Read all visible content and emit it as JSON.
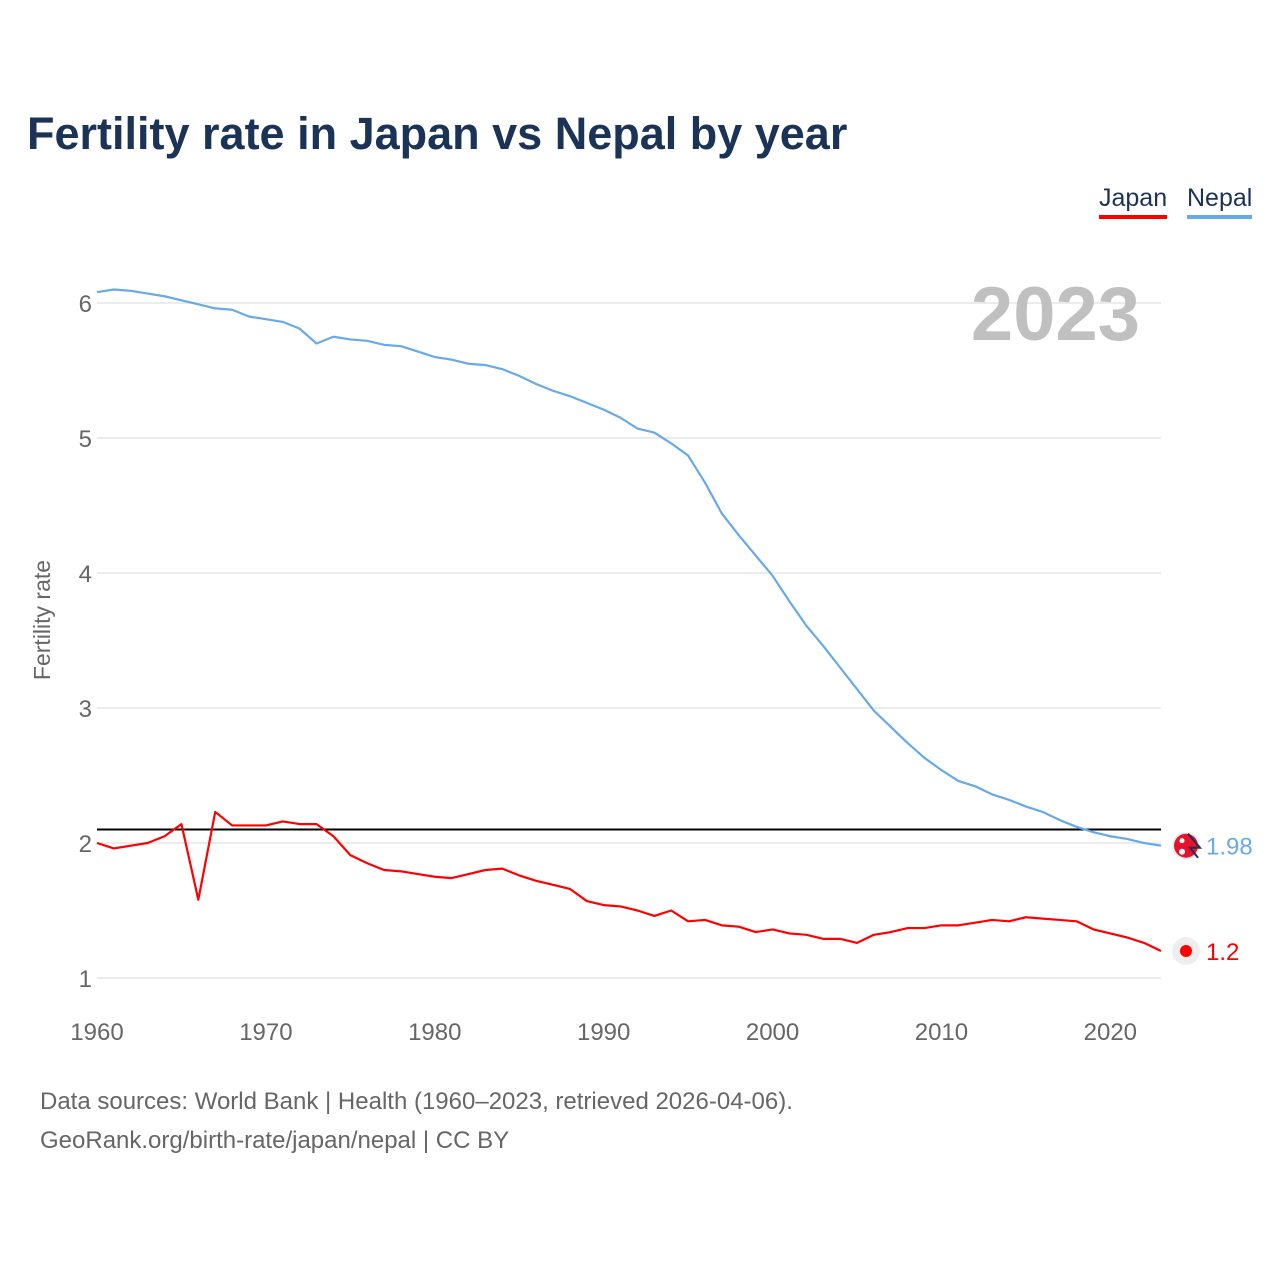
{
  "chart_data": {
    "type": "line",
    "title": "Fertility rate in Japan vs Nepal by year",
    "xlabel": "",
    "ylabel": "Fertility rate",
    "xlim": [
      1960,
      2023
    ],
    "ylim": [
      1,
      6
    ],
    "x_ticks": [
      "1960",
      "1970",
      "1980",
      "1990",
      "2000",
      "2010",
      "2020"
    ],
    "y_ticks": [
      "1",
      "2",
      "3",
      "4",
      "5",
      "6"
    ],
    "year_label": "2023",
    "reference_line": 2.1,
    "legend": [
      "Japan",
      "Nepal"
    ],
    "legend_position": "top-right",
    "colors": {
      "Japan": "#ff0000",
      "Nepal": "#67a9ea",
      "reference": "#000000"
    },
    "x": [
      1960,
      1961,
      1962,
      1963,
      1964,
      1965,
      1966,
      1967,
      1968,
      1969,
      1970,
      1971,
      1972,
      1973,
      1974,
      1975,
      1976,
      1977,
      1978,
      1979,
      1980,
      1981,
      1982,
      1983,
      1984,
      1985,
      1986,
      1987,
      1988,
      1989,
      1990,
      1991,
      1992,
      1993,
      1994,
      1995,
      1996,
      1997,
      1998,
      1999,
      2000,
      2001,
      2002,
      2003,
      2004,
      2005,
      2006,
      2007,
      2008,
      2009,
      2010,
      2011,
      2012,
      2013,
      2014,
      2015,
      2016,
      2017,
      2018,
      2019,
      2020,
      2021,
      2022,
      2023
    ],
    "series": [
      {
        "name": "Japan",
        "end_label": "1.2",
        "values": [
          2.0,
          1.96,
          1.98,
          2.0,
          2.05,
          2.14,
          1.58,
          2.23,
          2.13,
          2.13,
          2.13,
          2.16,
          2.14,
          2.14,
          2.05,
          1.91,
          1.85,
          1.8,
          1.79,
          1.77,
          1.75,
          1.74,
          1.77,
          1.8,
          1.81,
          1.76,
          1.72,
          1.69,
          1.66,
          1.57,
          1.54,
          1.53,
          1.5,
          1.46,
          1.5,
          1.42,
          1.43,
          1.39,
          1.38,
          1.34,
          1.36,
          1.33,
          1.32,
          1.29,
          1.29,
          1.26,
          1.32,
          1.34,
          1.37,
          1.37,
          1.39,
          1.39,
          1.41,
          1.43,
          1.42,
          1.45,
          1.44,
          1.43,
          1.42,
          1.36,
          1.33,
          1.3,
          1.26,
          1.2
        ]
      },
      {
        "name": "Nepal",
        "end_label": "1.98",
        "values": [
          6.08,
          6.1,
          6.09,
          6.07,
          6.05,
          6.02,
          5.99,
          5.96,
          5.95,
          5.9,
          5.88,
          5.86,
          5.81,
          5.7,
          5.75,
          5.73,
          5.72,
          5.69,
          5.68,
          5.64,
          5.6,
          5.58,
          5.55,
          5.54,
          5.51,
          5.46,
          5.4,
          5.35,
          5.31,
          5.26,
          5.21,
          5.15,
          5.07,
          5.04,
          4.96,
          4.87,
          4.67,
          4.44,
          4.28,
          4.13,
          3.98,
          3.79,
          3.61,
          3.46,
          3.3,
          3.14,
          2.98,
          2.86,
          2.74,
          2.63,
          2.54,
          2.46,
          2.42,
          2.36,
          2.32,
          2.27,
          2.23,
          2.17,
          2.12,
          2.08,
          2.05,
          2.03,
          2.0,
          1.98
        ]
      }
    ]
  },
  "source_line1": "Data sources: World Bank | Health (1960–2023, retrieved 2026-04-06).",
  "source_line2": "GeoRank.org/birth-rate/japan/nepal | CC BY"
}
